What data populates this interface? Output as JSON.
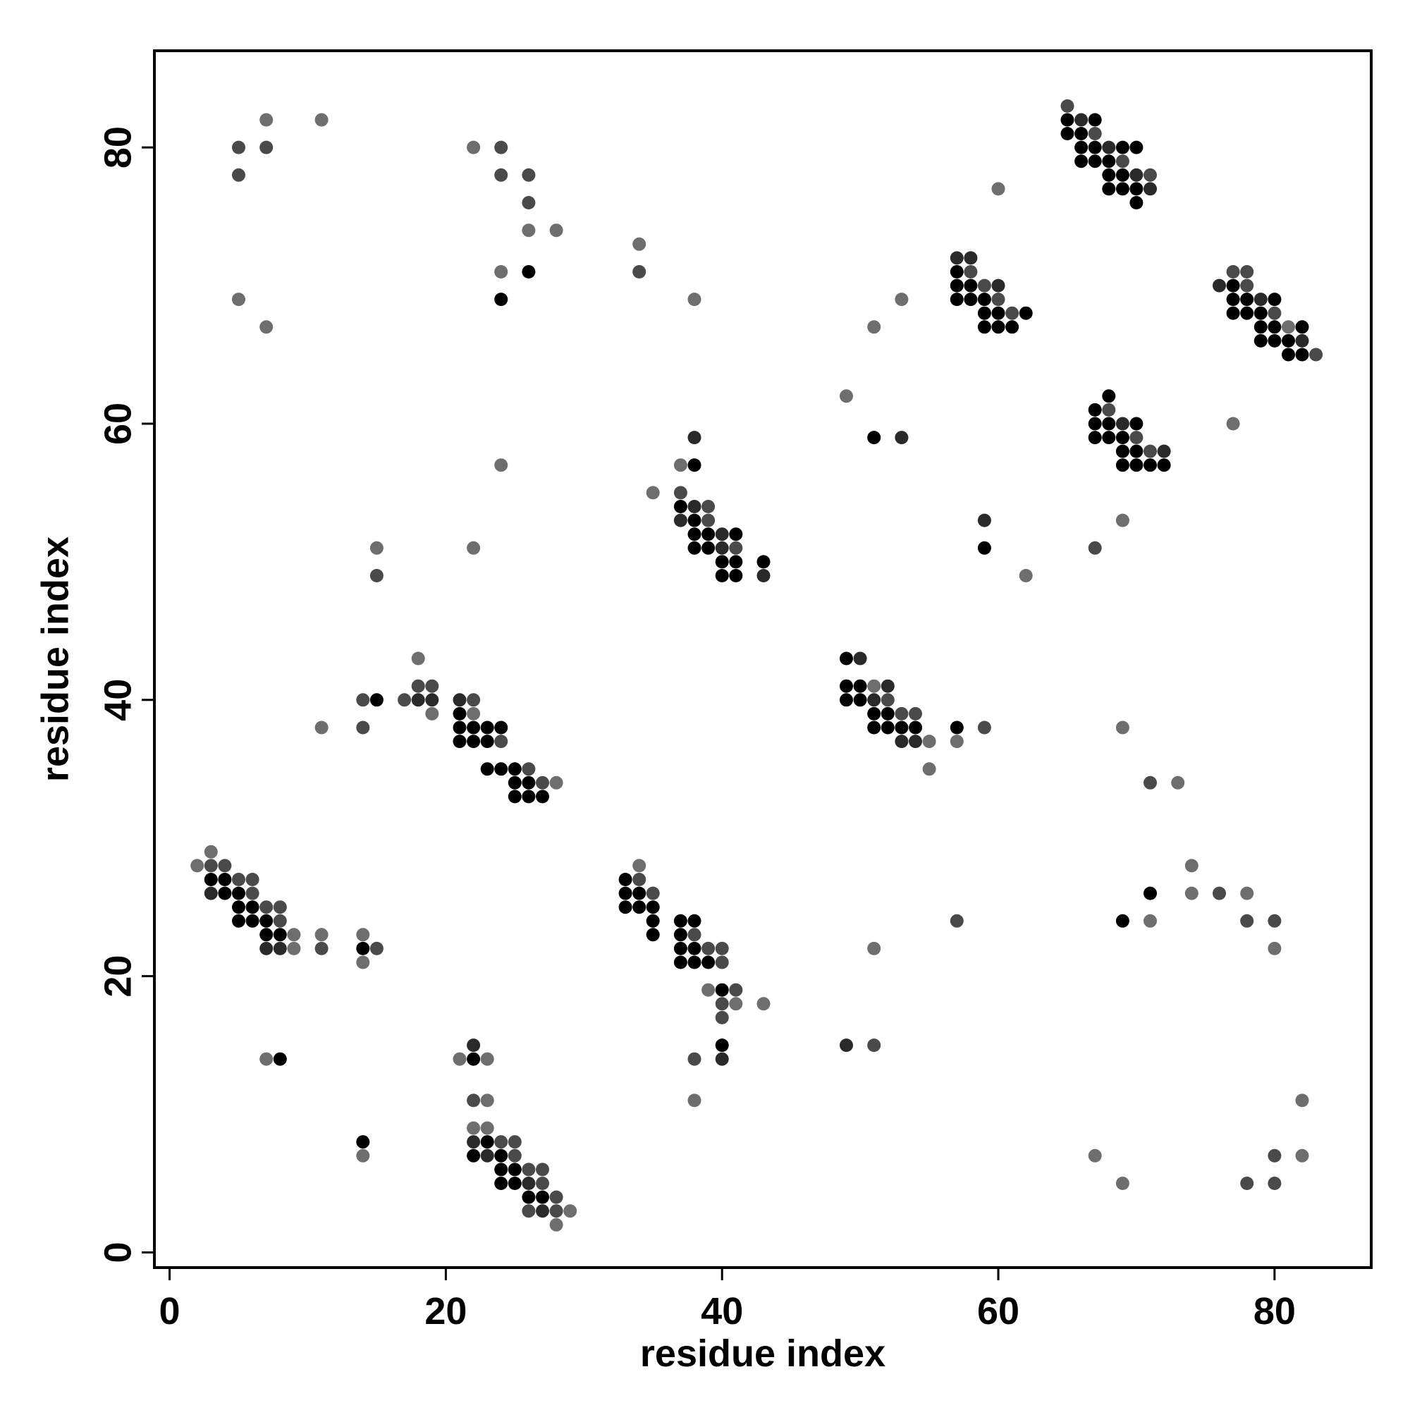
{
  "chart_data": {
    "type": "scatter",
    "title": "",
    "xlabel": "residue index",
    "ylabel": "residue index",
    "xlim": [
      -1.1,
      87.0
    ],
    "ylim": [
      -1.1,
      87.0
    ],
    "xticks": [
      0,
      20,
      40,
      60,
      80
    ],
    "yticks": [
      0,
      20,
      40,
      60,
      80
    ],
    "grid": false,
    "legend": "none",
    "shade_levels": {
      "1": "#000000",
      "2": "#2a2a2a",
      "3": "#4a4a4a",
      "4": "#6e6e6e"
    },
    "points": [
      [
        5,
        80,
        3
      ],
      [
        7,
        80,
        3
      ],
      [
        5,
        78,
        3
      ],
      [
        7,
        82,
        4
      ],
      [
        11,
        82,
        4
      ],
      [
        5,
        69,
        4
      ],
      [
        7,
        67,
        4
      ],
      [
        22,
        80,
        4
      ],
      [
        24,
        80,
        3
      ],
      [
        24,
        78,
        3
      ],
      [
        26,
        78,
        3
      ],
      [
        26,
        76,
        3
      ],
      [
        26,
        74,
        4
      ],
      [
        28,
        74,
        4
      ],
      [
        24,
        71,
        4
      ],
      [
        26,
        71,
        1
      ],
      [
        24,
        69,
        1
      ],
      [
        34,
        73,
        4
      ],
      [
        34,
        71,
        3
      ],
      [
        38,
        69,
        4
      ],
      [
        65,
        83,
        3
      ],
      [
        65,
        82,
        1
      ],
      [
        66,
        82,
        2
      ],
      [
        67,
        82,
        1
      ],
      [
        65,
        81,
        1
      ],
      [
        66,
        81,
        1
      ],
      [
        67,
        81,
        3
      ],
      [
        66,
        80,
        1
      ],
      [
        67,
        80,
        1
      ],
      [
        68,
        80,
        2
      ],
      [
        69,
        80,
        1
      ],
      [
        70,
        80,
        1
      ],
      [
        66,
        79,
        1
      ],
      [
        67,
        79,
        1
      ],
      [
        68,
        79,
        1
      ],
      [
        69,
        79,
        3
      ],
      [
        68,
        78,
        1
      ],
      [
        69,
        78,
        1
      ],
      [
        70,
        78,
        2
      ],
      [
        71,
        78,
        3
      ],
      [
        68,
        77,
        1
      ],
      [
        69,
        77,
        1
      ],
      [
        70,
        77,
        1
      ],
      [
        71,
        77,
        2
      ],
      [
        70,
        76,
        1
      ],
      [
        60,
        77,
        4
      ],
      [
        57,
        72,
        2
      ],
      [
        58,
        72,
        2
      ],
      [
        57,
        71,
        1
      ],
      [
        58,
        71,
        3
      ],
      [
        57,
        70,
        1
      ],
      [
        58,
        70,
        1
      ],
      [
        59,
        70,
        3
      ],
      [
        60,
        70,
        2
      ],
      [
        57,
        69,
        1
      ],
      [
        58,
        69,
        1
      ],
      [
        59,
        69,
        1
      ],
      [
        60,
        69,
        3
      ],
      [
        59,
        68,
        1
      ],
      [
        60,
        68,
        1
      ],
      [
        61,
        68,
        3
      ],
      [
        62,
        68,
        1
      ],
      [
        59,
        67,
        1
      ],
      [
        60,
        67,
        1
      ],
      [
        61,
        67,
        1
      ],
      [
        53,
        69,
        4
      ],
      [
        51,
        67,
        4
      ],
      [
        77,
        71,
        3
      ],
      [
        78,
        71,
        3
      ],
      [
        76,
        70,
        2
      ],
      [
        77,
        70,
        1
      ],
      [
        78,
        70,
        3
      ],
      [
        77,
        69,
        1
      ],
      [
        78,
        69,
        1
      ],
      [
        79,
        69,
        2
      ],
      [
        80,
        69,
        1
      ],
      [
        77,
        68,
        1
      ],
      [
        78,
        68,
        1
      ],
      [
        79,
        68,
        1
      ],
      [
        80,
        68,
        3
      ],
      [
        79,
        67,
        1
      ],
      [
        80,
        67,
        1
      ],
      [
        81,
        67,
        4
      ],
      [
        82,
        67,
        1
      ],
      [
        79,
        66,
        1
      ],
      [
        80,
        66,
        1
      ],
      [
        81,
        66,
        1
      ],
      [
        82,
        66,
        2
      ],
      [
        81,
        65,
        1
      ],
      [
        82,
        65,
        1
      ],
      [
        83,
        65,
        3
      ],
      [
        68,
        62,
        1
      ],
      [
        67,
        61,
        1
      ],
      [
        68,
        61,
        3
      ],
      [
        67,
        60,
        1
      ],
      [
        68,
        60,
        1
      ],
      [
        69,
        60,
        2
      ],
      [
        70,
        60,
        1
      ],
      [
        67,
        59,
        1
      ],
      [
        68,
        59,
        1
      ],
      [
        69,
        59,
        1
      ],
      [
        70,
        59,
        3
      ],
      [
        69,
        58,
        1
      ],
      [
        70,
        58,
        1
      ],
      [
        71,
        58,
        3
      ],
      [
        72,
        58,
        2
      ],
      [
        69,
        57,
        1
      ],
      [
        70,
        57,
        1
      ],
      [
        71,
        57,
        1
      ],
      [
        72,
        57,
        1
      ],
      [
        77,
        60,
        4
      ],
      [
        49,
        62,
        4
      ],
      [
        51,
        59,
        1
      ],
      [
        53,
        59,
        2
      ],
      [
        59,
        53,
        2
      ],
      [
        59,
        51,
        1
      ],
      [
        62,
        49,
        4
      ],
      [
        67,
        51,
        3
      ],
      [
        69,
        53,
        4
      ],
      [
        38,
        59,
        2
      ],
      [
        37,
        57,
        4
      ],
      [
        38,
        57,
        1
      ],
      [
        35,
        55,
        4
      ],
      [
        37,
        55,
        3
      ],
      [
        37,
        54,
        1
      ],
      [
        38,
        54,
        2
      ],
      [
        39,
        54,
        3
      ],
      [
        37,
        53,
        2
      ],
      [
        38,
        53,
        1
      ],
      [
        39,
        53,
        3
      ],
      [
        38,
        52,
        1
      ],
      [
        39,
        52,
        1
      ],
      [
        40,
        52,
        2
      ],
      [
        41,
        52,
        1
      ],
      [
        38,
        51,
        1
      ],
      [
        39,
        51,
        1
      ],
      [
        40,
        51,
        2
      ],
      [
        41,
        51,
        3
      ],
      [
        40,
        50,
        1
      ],
      [
        41,
        50,
        1
      ],
      [
        43,
        50,
        1
      ],
      [
        40,
        49,
        1
      ],
      [
        41,
        49,
        1
      ],
      [
        43,
        49,
        2
      ],
      [
        24,
        57,
        4
      ],
      [
        22,
        51,
        4
      ],
      [
        15,
        51,
        4
      ],
      [
        15,
        49,
        3
      ],
      [
        18,
        43,
        4
      ],
      [
        18,
        41,
        3
      ],
      [
        19,
        41,
        3
      ],
      [
        17,
        40,
        3
      ],
      [
        18,
        40,
        2
      ],
      [
        19,
        40,
        2
      ],
      [
        19,
        39,
        4
      ],
      [
        14,
        40,
        3
      ],
      [
        15,
        40,
        1
      ],
      [
        11,
        38,
        4
      ],
      [
        14,
        38,
        3
      ],
      [
        21,
        40,
        2
      ],
      [
        22,
        40,
        3
      ],
      [
        21,
        39,
        1
      ],
      [
        22,
        39,
        4
      ],
      [
        21,
        38,
        1
      ],
      [
        22,
        38,
        1
      ],
      [
        23,
        38,
        1
      ],
      [
        24,
        38,
        1
      ],
      [
        21,
        37,
        1
      ],
      [
        22,
        37,
        1
      ],
      [
        23,
        37,
        1
      ],
      [
        24,
        37,
        3
      ],
      [
        23,
        35,
        1
      ],
      [
        24,
        35,
        1
      ],
      [
        25,
        35,
        1
      ],
      [
        26,
        35,
        3
      ],
      [
        25,
        34,
        1
      ],
      [
        26,
        34,
        1
      ],
      [
        27,
        34,
        3
      ],
      [
        28,
        34,
        4
      ],
      [
        25,
        33,
        1
      ],
      [
        26,
        33,
        1
      ],
      [
        27,
        33,
        1
      ],
      [
        49,
        43,
        1
      ],
      [
        50,
        43,
        2
      ],
      [
        49,
        41,
        1
      ],
      [
        50,
        41,
        1
      ],
      [
        51,
        41,
        4
      ],
      [
        52,
        41,
        2
      ],
      [
        49,
        40,
        1
      ],
      [
        50,
        40,
        1
      ],
      [
        51,
        40,
        2
      ],
      [
        52,
        40,
        3
      ],
      [
        51,
        39,
        1
      ],
      [
        52,
        39,
        1
      ],
      [
        53,
        39,
        3
      ],
      [
        54,
        39,
        3
      ],
      [
        51,
        38,
        1
      ],
      [
        52,
        38,
        1
      ],
      [
        53,
        38,
        1
      ],
      [
        54,
        38,
        1
      ],
      [
        53,
        37,
        2
      ],
      [
        54,
        37,
        2
      ],
      [
        55,
        37,
        4
      ],
      [
        55,
        35,
        4
      ],
      [
        57,
        38,
        1
      ],
      [
        59,
        38,
        3
      ],
      [
        57,
        37,
        4
      ],
      [
        69,
        38,
        4
      ],
      [
        71,
        34,
        3
      ],
      [
        73,
        34,
        4
      ],
      [
        3,
        29,
        4
      ],
      [
        2,
        28,
        4
      ],
      [
        3,
        28,
        3
      ],
      [
        4,
        28,
        3
      ],
      [
        3,
        27,
        1
      ],
      [
        4,
        27,
        1
      ],
      [
        5,
        27,
        3
      ],
      [
        6,
        27,
        3
      ],
      [
        3,
        26,
        2
      ],
      [
        4,
        26,
        1
      ],
      [
        5,
        26,
        1
      ],
      [
        6,
        26,
        3
      ],
      [
        5,
        25,
        1
      ],
      [
        6,
        25,
        1
      ],
      [
        7,
        25,
        3
      ],
      [
        8,
        25,
        3
      ],
      [
        5,
        24,
        1
      ],
      [
        6,
        24,
        1
      ],
      [
        7,
        24,
        1
      ],
      [
        8,
        24,
        3
      ],
      [
        7,
        23,
        1
      ],
      [
        8,
        23,
        1
      ],
      [
        9,
        23,
        4
      ],
      [
        7,
        22,
        2
      ],
      [
        8,
        22,
        2
      ],
      [
        9,
        22,
        4
      ],
      [
        11,
        23,
        4
      ],
      [
        11,
        22,
        3
      ],
      [
        14,
        23,
        4
      ],
      [
        14,
        22,
        1
      ],
      [
        15,
        22,
        3
      ],
      [
        14,
        21,
        4
      ],
      [
        7,
        14,
        4
      ],
      [
        8,
        14,
        1
      ],
      [
        33,
        27,
        1
      ],
      [
        34,
        27,
        3
      ],
      [
        34,
        28,
        4
      ],
      [
        33,
        26,
        1
      ],
      [
        34,
        26,
        1
      ],
      [
        35,
        26,
        3
      ],
      [
        33,
        25,
        1
      ],
      [
        34,
        25,
        1
      ],
      [
        35,
        25,
        1
      ],
      [
        35,
        24,
        1
      ],
      [
        35,
        23,
        1
      ],
      [
        37,
        24,
        1
      ],
      [
        38,
        24,
        1
      ],
      [
        37,
        23,
        1
      ],
      [
        38,
        23,
        3
      ],
      [
        37,
        22,
        1
      ],
      [
        38,
        22,
        1
      ],
      [
        39,
        22,
        3
      ],
      [
        40,
        22,
        3
      ],
      [
        37,
        21,
        1
      ],
      [
        38,
        21,
        1
      ],
      [
        39,
        21,
        1
      ],
      [
        40,
        21,
        3
      ],
      [
        39,
        19,
        4
      ],
      [
        40,
        19,
        1
      ],
      [
        41,
        19,
        3
      ],
      [
        40,
        18,
        3
      ],
      [
        41,
        18,
        4
      ],
      [
        43,
        18,
        4
      ],
      [
        40,
        17,
        3
      ],
      [
        40,
        15,
        1
      ],
      [
        38,
        14,
        3
      ],
      [
        40,
        14,
        2
      ],
      [
        38,
        11,
        4
      ],
      [
        22,
        15,
        2
      ],
      [
        21,
        14,
        4
      ],
      [
        22,
        14,
        1
      ],
      [
        23,
        14,
        4
      ],
      [
        22,
        11,
        3
      ],
      [
        23,
        11,
        4
      ],
      [
        22,
        9,
        4
      ],
      [
        23,
        9,
        4
      ],
      [
        22,
        8,
        2
      ],
      [
        23,
        8,
        1
      ],
      [
        24,
        8,
        3
      ],
      [
        25,
        8,
        3
      ],
      [
        22,
        7,
        1
      ],
      [
        23,
        7,
        2
      ],
      [
        24,
        7,
        1
      ],
      [
        25,
        7,
        3
      ],
      [
        24,
        6,
        1
      ],
      [
        25,
        6,
        1
      ],
      [
        26,
        6,
        3
      ],
      [
        27,
        6,
        3
      ],
      [
        24,
        5,
        1
      ],
      [
        25,
        5,
        1
      ],
      [
        26,
        5,
        2
      ],
      [
        27,
        5,
        3
      ],
      [
        26,
        4,
        1
      ],
      [
        27,
        4,
        1
      ],
      [
        28,
        4,
        3
      ],
      [
        26,
        3,
        3
      ],
      [
        27,
        3,
        2
      ],
      [
        28,
        3,
        3
      ],
      [
        29,
        3,
        4
      ],
      [
        28,
        2,
        4
      ],
      [
        14,
        8,
        1
      ],
      [
        14,
        7,
        4
      ],
      [
        49,
        15,
        2
      ],
      [
        51,
        15,
        3
      ],
      [
        51,
        22,
        4
      ],
      [
        57,
        24,
        3
      ],
      [
        71,
        26,
        1
      ],
      [
        69,
        24,
        1
      ],
      [
        71,
        24,
        4
      ],
      [
        74,
        28,
        4
      ],
      [
        74,
        26,
        4
      ],
      [
        76,
        26,
        3
      ],
      [
        78,
        26,
        4
      ],
      [
        78,
        24,
        3
      ],
      [
        80,
        24,
        3
      ],
      [
        80,
        22,
        4
      ],
      [
        67,
        7,
        4
      ],
      [
        69,
        5,
        4
      ],
      [
        78,
        5,
        3
      ],
      [
        80,
        5,
        3
      ],
      [
        80,
        7,
        3
      ],
      [
        82,
        7,
        4
      ],
      [
        82,
        11,
        4
      ]
    ]
  }
}
